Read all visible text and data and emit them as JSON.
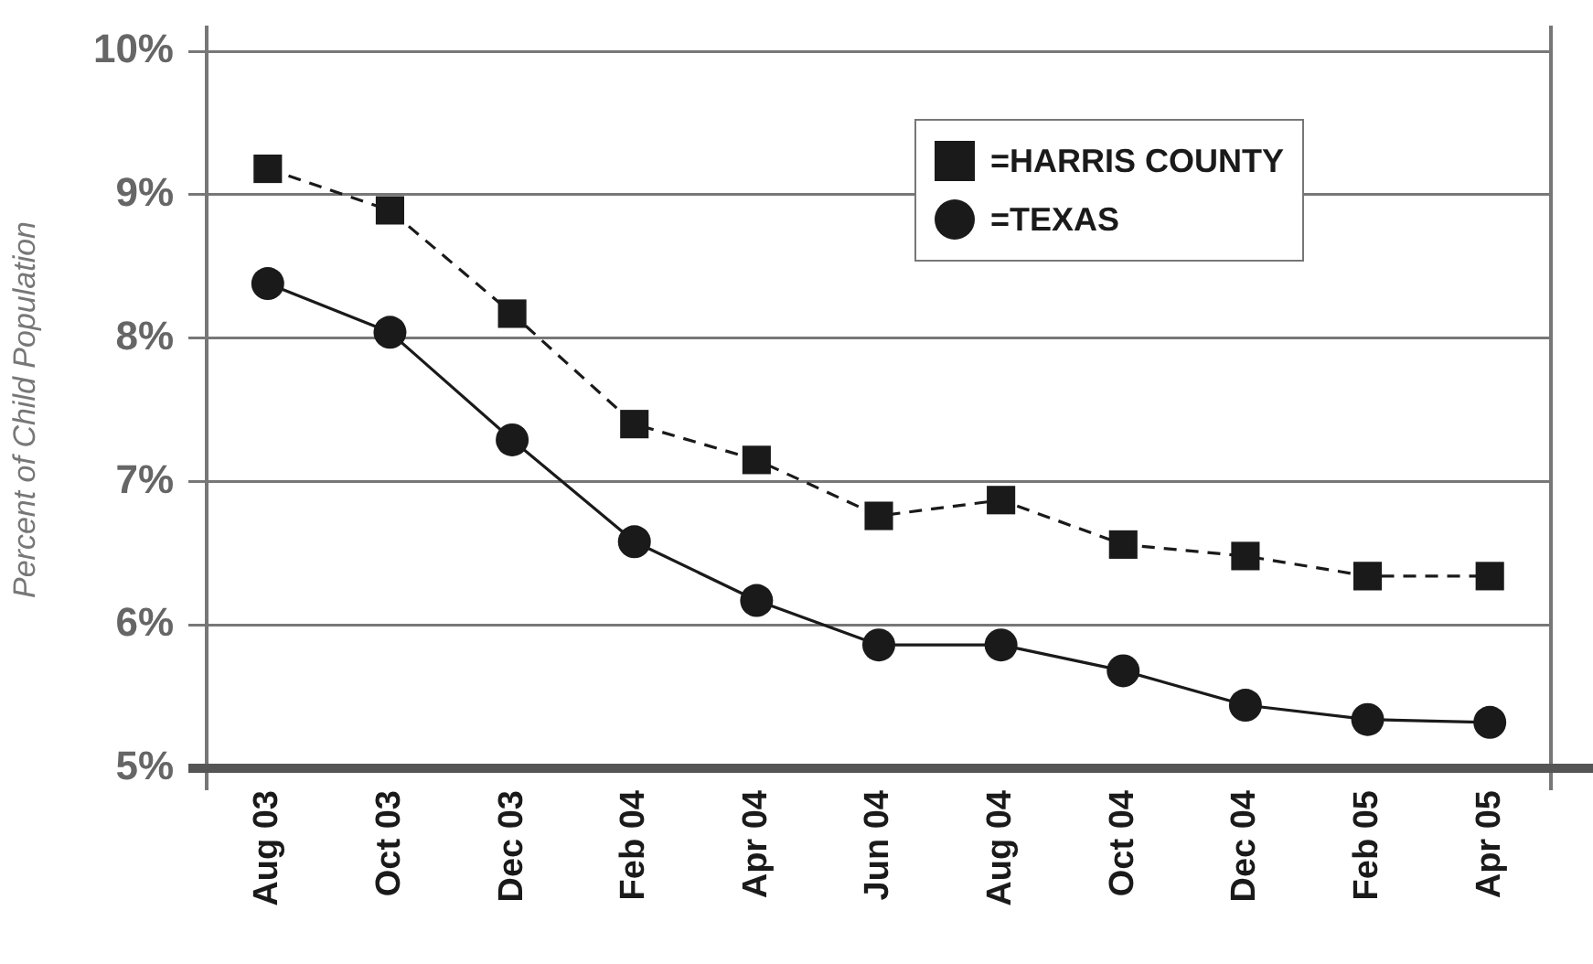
{
  "chart_data": {
    "type": "line",
    "ylabel": "Percent of Child Population",
    "categories": [
      "Aug 03",
      "Oct 03",
      "Dec 03",
      "Feb 04",
      "Apr 04",
      "Jun 04",
      "Aug 04",
      "Oct 04",
      "Dec 04",
      "Feb 05",
      "Apr 05"
    ],
    "series": [
      {
        "name": "=HARRIS COUNTY",
        "color": "#1a1a1a",
        "marker": "square",
        "line_style": "dashed",
        "values": [
          9.18,
          8.89,
          8.17,
          7.4,
          7.15,
          6.76,
          6.87,
          6.56,
          6.48,
          6.34,
          6.34
        ]
      },
      {
        "name": "=TEXAS",
        "color": "#1a1a1a",
        "marker": "circle",
        "line_style": "solid",
        "values": [
          8.38,
          8.04,
          7.29,
          6.58,
          6.17,
          5.86,
          5.86,
          5.68,
          5.44,
          5.34,
          5.32
        ]
      }
    ],
    "ylim": [
      5,
      10
    ],
    "yticks": [
      {
        "value": 5,
        "label": "5%"
      },
      {
        "value": 6,
        "label": "6%"
      },
      {
        "value": 7,
        "label": "7%"
      },
      {
        "value": 8,
        "label": "8%"
      },
      {
        "value": 9,
        "label": "9%"
      },
      {
        "value": 10,
        "label": "10%"
      }
    ],
    "grid": "y",
    "legend": "top right"
  }
}
